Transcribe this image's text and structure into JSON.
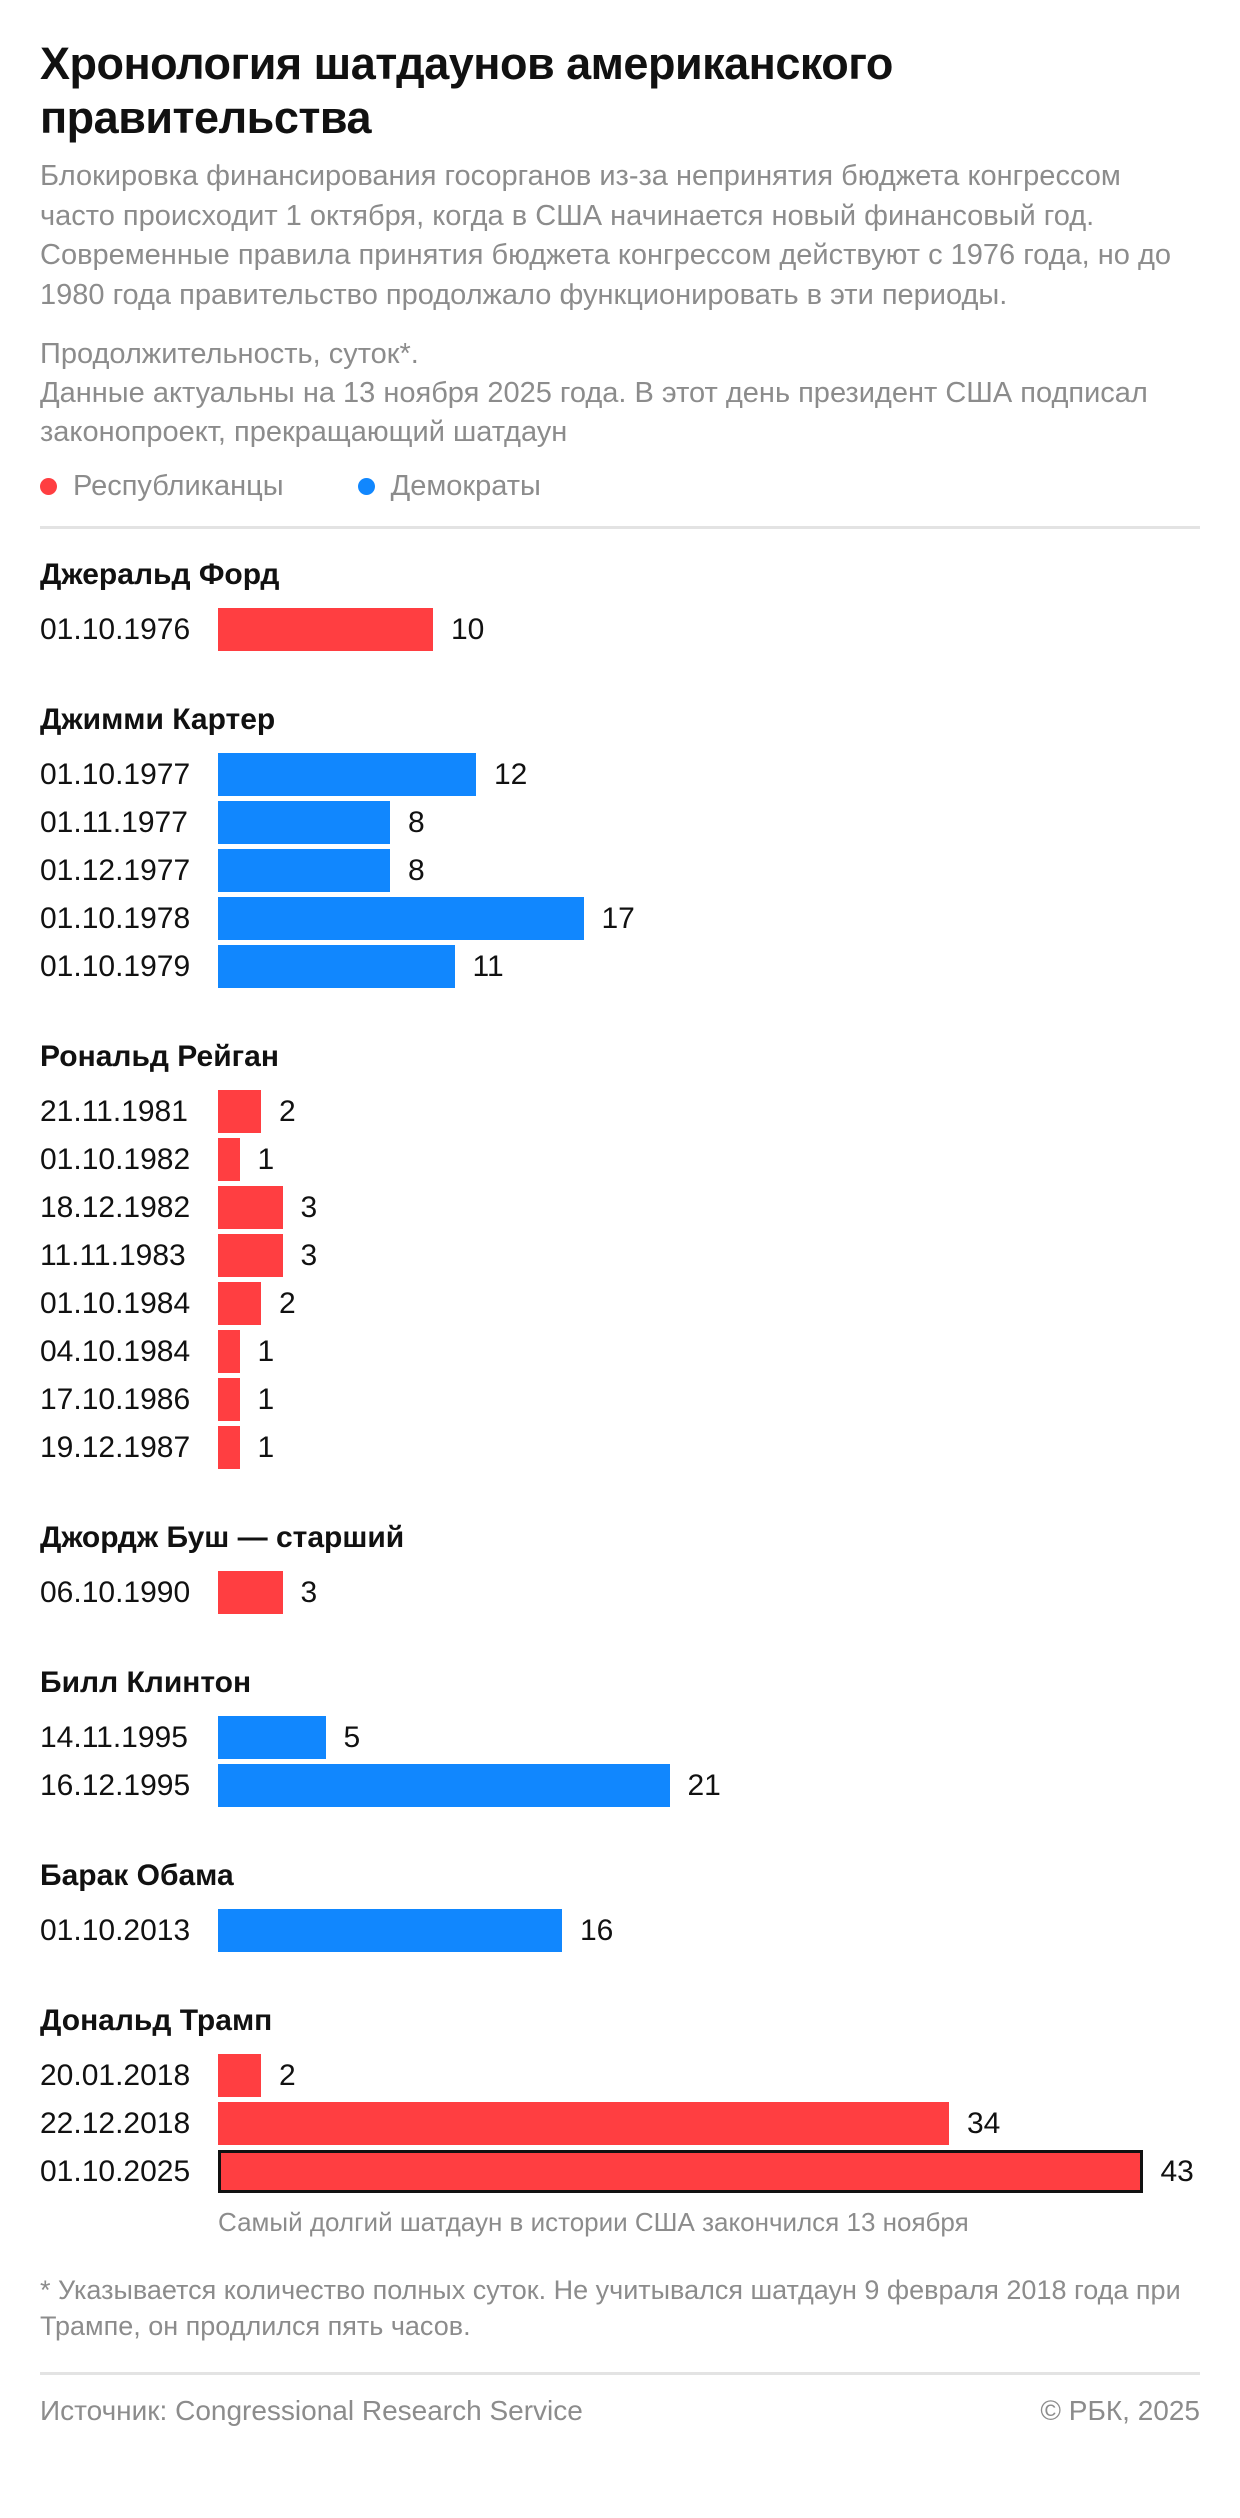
{
  "title": "Хронология шатдаунов американского правительства",
  "description": "Блокировка финансирования госорганов из-за непринятия бюджета конгрессом часто происходит 1 октября, когда в США начинается новый финансовый год. Современные правила принятия бюджета конгрессом действуют с 1976 года, но до 1980 года правительство продолжало функционировать в эти периоды.",
  "unit_label": "Продолжительность, суток*.",
  "data_note": "Данные актуальны на 13 ноября 2025 года. В этот день президент США подписал законопроект, прекращающий шатдаун",
  "legend": [
    {
      "label": "Республиканцы",
      "color": "#ff3e41"
    },
    {
      "label": "Демократы",
      "color": "#1187fe"
    }
  ],
  "chart_data": {
    "type": "bar",
    "orientation": "horizontal",
    "unit": "суток",
    "groups": [
      {
        "president": "Джеральд Форд",
        "party": "rep",
        "items": [
          {
            "date": "01.10.1976",
            "value": 10
          }
        ]
      },
      {
        "president": "Джимми Картер",
        "party": "dem",
        "items": [
          {
            "date": "01.10.1977",
            "value": 12
          },
          {
            "date": "01.11.1977",
            "value": 8
          },
          {
            "date": "01.12.1977",
            "value": 8
          },
          {
            "date": "01.10.1978",
            "value": 17
          },
          {
            "date": "01.10.1979",
            "value": 11
          }
        ]
      },
      {
        "president": "Рональд Рейган",
        "party": "rep",
        "items": [
          {
            "date": "21.11.1981",
            "value": 2
          },
          {
            "date": "01.10.1982",
            "value": 1
          },
          {
            "date": "18.12.1982",
            "value": 3
          },
          {
            "date": "11.11.1983",
            "value": 3
          },
          {
            "date": "01.10.1984",
            "value": 2
          },
          {
            "date": "04.10.1984",
            "value": 1
          },
          {
            "date": "17.10.1986",
            "value": 1
          },
          {
            "date": "19.12.1987",
            "value": 1
          }
        ]
      },
      {
        "president": "Джордж Буш — старший",
        "party": "rep",
        "items": [
          {
            "date": "06.10.1990",
            "value": 3
          }
        ]
      },
      {
        "president": "Билл Клинтон",
        "party": "dem",
        "items": [
          {
            "date": "14.11.1995",
            "value": 5
          },
          {
            "date": "16.12.1995",
            "value": 21
          }
        ]
      },
      {
        "president": "Барак Обама",
        "party": "dem",
        "items": [
          {
            "date": "01.10.2013",
            "value": 16
          }
        ]
      },
      {
        "president": "Дональд Трамп",
        "party": "rep",
        "items": [
          {
            "date": "20.01.2018",
            "value": 2
          },
          {
            "date": "22.12.2018",
            "value": 34
          },
          {
            "date": "01.10.2025",
            "value": 43,
            "highlight": true
          }
        ]
      }
    ],
    "annotation": "Самый долгий шатдаун в истории США закончился 13 ноября"
  },
  "footnote": "* Указывается количество полных суток. Не учитывался шатдаун 9 февраля 2018 года при Трампе, он продлился пять часов.",
  "source": "Источник: Congressional Research Service",
  "copyright": "© РБК, 2025"
}
